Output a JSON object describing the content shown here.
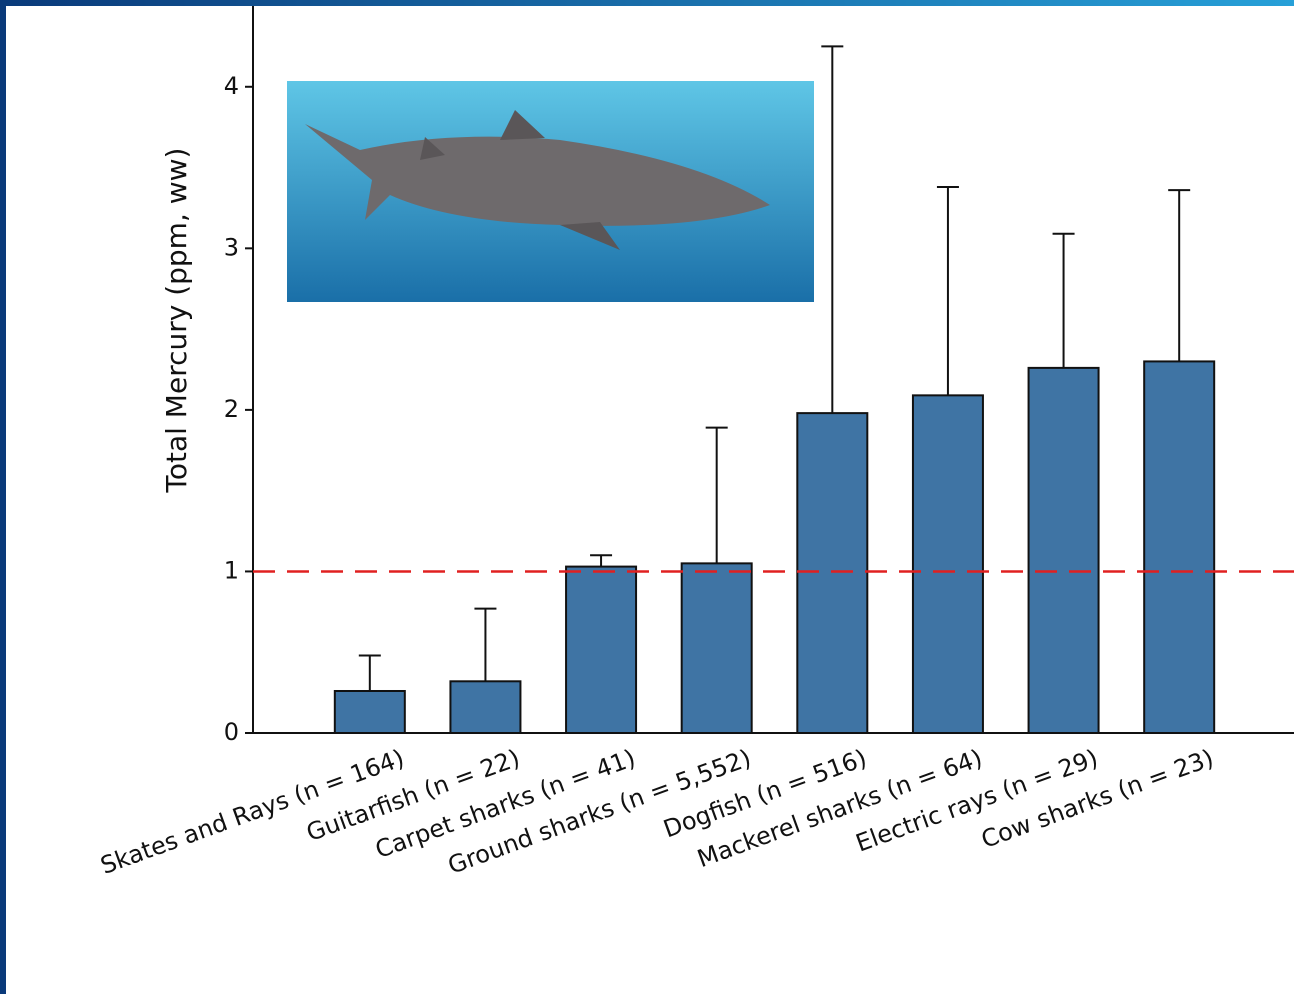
{
  "chart_data": {
    "type": "bar",
    "y_label": "Total Mercury (ppm, ww)",
    "categories": [
      "Skates and Rays (n = 164)",
      "Guitarfish (n = 22)",
      "Carpet sharks (n = 41)",
      "Ground sharks (n = 5,552)",
      "Dogfish (n = 516)",
      "Mackerel sharks (n = 64)",
      "Electric rays (n = 29)",
      "Cow sharks (n = 23)"
    ],
    "values": [
      0.26,
      0.32,
      1.03,
      1.05,
      1.98,
      2.09,
      2.26,
      2.3
    ],
    "errors": [
      0.22,
      0.45,
      0.07,
      0.84,
      2.27,
      1.29,
      0.83,
      1.06
    ],
    "color": "#3f74a4",
    "ylim": [
      0,
      4.5
    ],
    "yticks": [
      0,
      1,
      2,
      3,
      4
    ],
    "reference_line": {
      "value": 1,
      "color": "#e02020"
    }
  }
}
